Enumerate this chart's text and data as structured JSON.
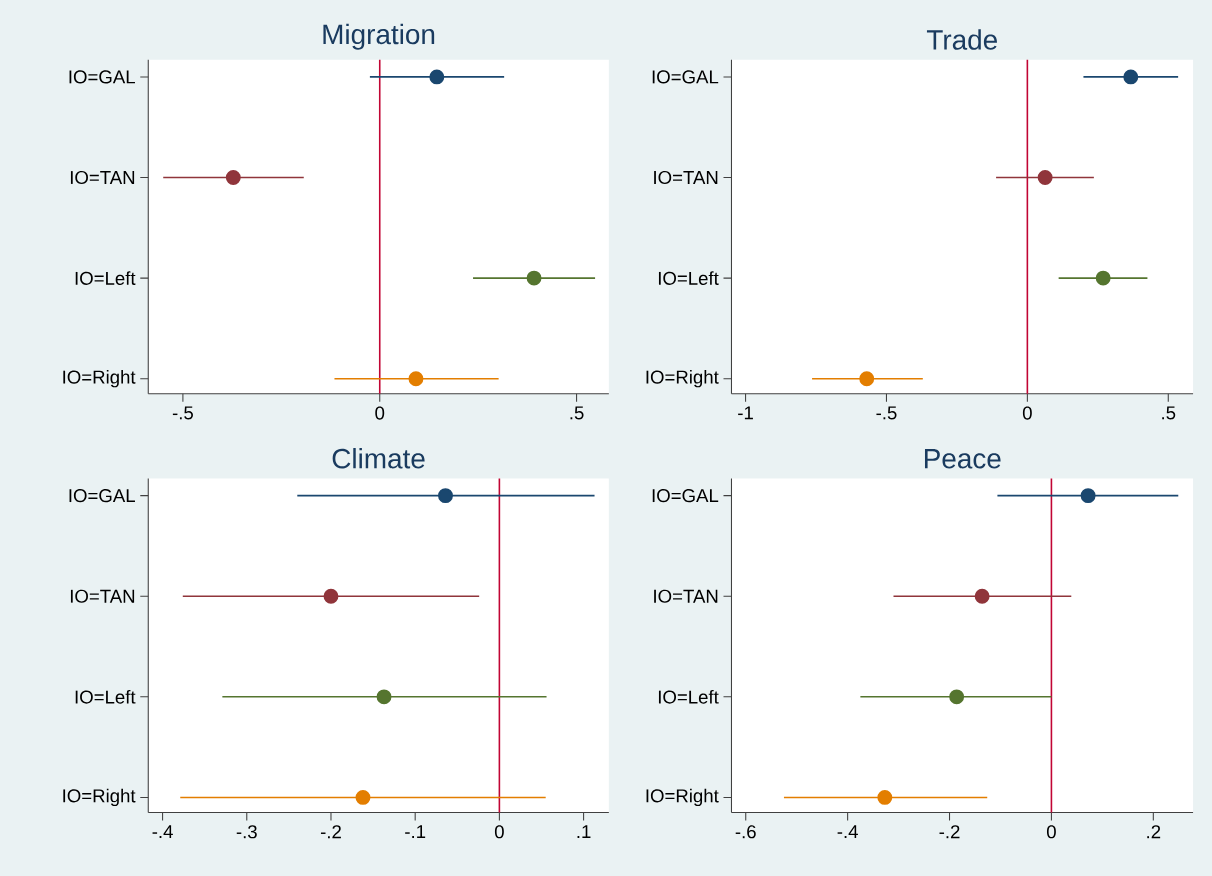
{
  "chart_data": [
    {
      "type": "scatter",
      "orientation": "horizontal",
      "title": "Migration",
      "marker": "circle",
      "categories": [
        "IO=GAL",
        "IO=TAN",
        "IO=Left",
        "IO=Right"
      ],
      "values": [
        0.145,
        -0.372,
        0.392,
        0.092
      ],
      "errors": [
        [
          -0.025,
          0.316
        ],
        [
          -0.55,
          -0.193
        ],
        [
          0.237,
          0.547
        ],
        [
          -0.115,
          0.302
        ]
      ],
      "colors": [
        "#1a476f",
        "#90353b",
        "#55752f",
        "#e37e00"
      ],
      "xlim": [
        -0.588,
        0.582
      ],
      "xticks": [
        {
          "value": -0.5,
          "label": "-.5"
        },
        0,
        {
          "value": 0.5,
          "label": ".5"
        }
      ],
      "ref_lines": [
        {
          "axis": "x",
          "value": 0,
          "color": "#c10534"
        }
      ]
    },
    {
      "type": "scatter",
      "orientation": "horizontal",
      "title": "Trade",
      "marker": "circle",
      "categories": [
        "IO=GAL",
        "IO=TAN",
        "IO=Left",
        "IO=Right"
      ],
      "values": [
        0.367,
        0.063,
        0.269,
        -0.57
      ],
      "errors": [
        [
          0.199,
          0.535
        ],
        [
          -0.111,
          0.236
        ],
        [
          0.111,
          0.426
        ],
        [
          -0.764,
          -0.371
        ]
      ],
      "colors": [
        "#1a476f",
        "#90353b",
        "#55752f",
        "#e37e00"
      ],
      "xlim": [
        -1.05,
        0.588
      ],
      "xticks": [
        -1,
        {
          "value": -0.5,
          "label": "-.5"
        },
        0,
        {
          "value": 0.5,
          "label": ".5"
        }
      ],
      "ref_lines": [
        {
          "axis": "x",
          "value": 0,
          "color": "#c10534"
        }
      ]
    },
    {
      "type": "scatter",
      "orientation": "horizontal",
      "title": "Climate",
      "marker": "circle",
      "categories": [
        "IO=GAL",
        "IO=TAN",
        "IO=Left",
        "IO=Right"
      ],
      "values": [
        -0.064,
        -0.2,
        -0.137,
        -0.162
      ],
      "errors": [
        [
          -0.24,
          0.113
        ],
        [
          -0.376,
          -0.024
        ],
        [
          -0.329,
          0.056
        ],
        [
          -0.379,
          0.055
        ]
      ],
      "colors": [
        "#1a476f",
        "#90353b",
        "#55752f",
        "#e37e00"
      ],
      "xlim": [
        -0.417,
        0.13
      ],
      "xticks": [
        {
          "value": -0.4,
          "label": "-.4"
        },
        {
          "value": -0.3,
          "label": "-.3"
        },
        {
          "value": -0.2,
          "label": "-.2"
        },
        {
          "value": -0.1,
          "label": "-.1"
        },
        0,
        {
          "value": 0.1,
          "label": ".1"
        }
      ],
      "ref_lines": [
        {
          "axis": "x",
          "value": 0,
          "color": "#c10534"
        }
      ]
    },
    {
      "type": "scatter",
      "orientation": "horizontal",
      "title": "Peace",
      "marker": "circle",
      "categories": [
        "IO=GAL",
        "IO=TAN",
        "IO=Left",
        "IO=Right"
      ],
      "values": [
        0.072,
        -0.136,
        -0.186,
        -0.327
      ],
      "errors": [
        [
          -0.106,
          0.249
        ],
        [
          -0.31,
          0.039
        ],
        [
          -0.375,
          0.0
        ],
        [
          -0.525,
          -0.126
        ]
      ],
      "colors": [
        "#1a476f",
        "#90353b",
        "#55752f",
        "#e37e00"
      ],
      "xlim": [
        -0.628,
        0.278
      ],
      "xticks": [
        {
          "value": -0.6,
          "label": "-.6"
        },
        {
          "value": -0.4,
          "label": "-.4"
        },
        {
          "value": -0.2,
          "label": "-.2"
        },
        0,
        {
          "value": 0.2,
          "label": ".2"
        }
      ],
      "ref_lines": [
        {
          "axis": "x",
          "value": 0,
          "color": "#c10534"
        }
      ]
    }
  ]
}
